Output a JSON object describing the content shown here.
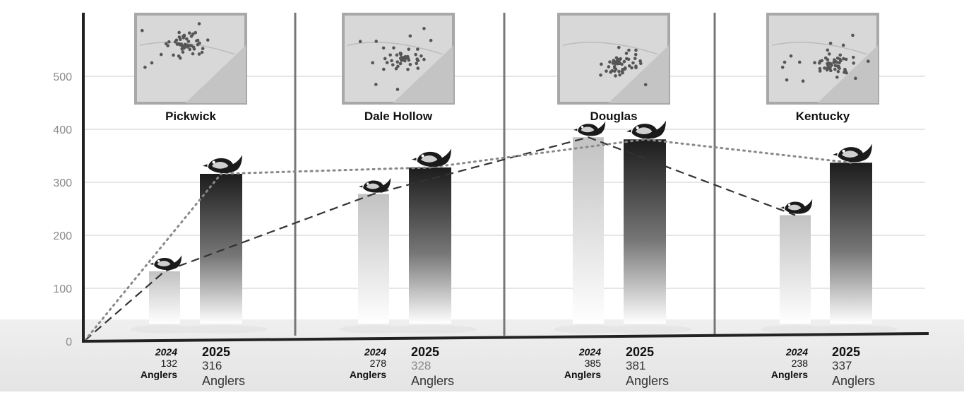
{
  "chart_data": {
    "type": "bar",
    "categories": [
      "Pickwick",
      "Dale Hollow",
      "Douglas",
      "Kentucky"
    ],
    "series": [
      {
        "name": "2024",
        "values": [
          132,
          278,
          385,
          238
        ]
      },
      {
        "name": "2025",
        "values": [
          316,
          328,
          381,
          337
        ]
      }
    ],
    "ylim": [
      0,
      600
    ],
    "yticks": [
      0,
      100,
      200,
      300,
      400,
      500
    ],
    "grid": true,
    "unit_label": "Anglers",
    "colors": {
      "series_2024": "#b8b8b8",
      "series_2025": "#1f1f1f",
      "trend_2024": "#333333",
      "trend_2025": "#888888",
      "axis": "#222222",
      "divider": "#777777"
    }
  }
}
